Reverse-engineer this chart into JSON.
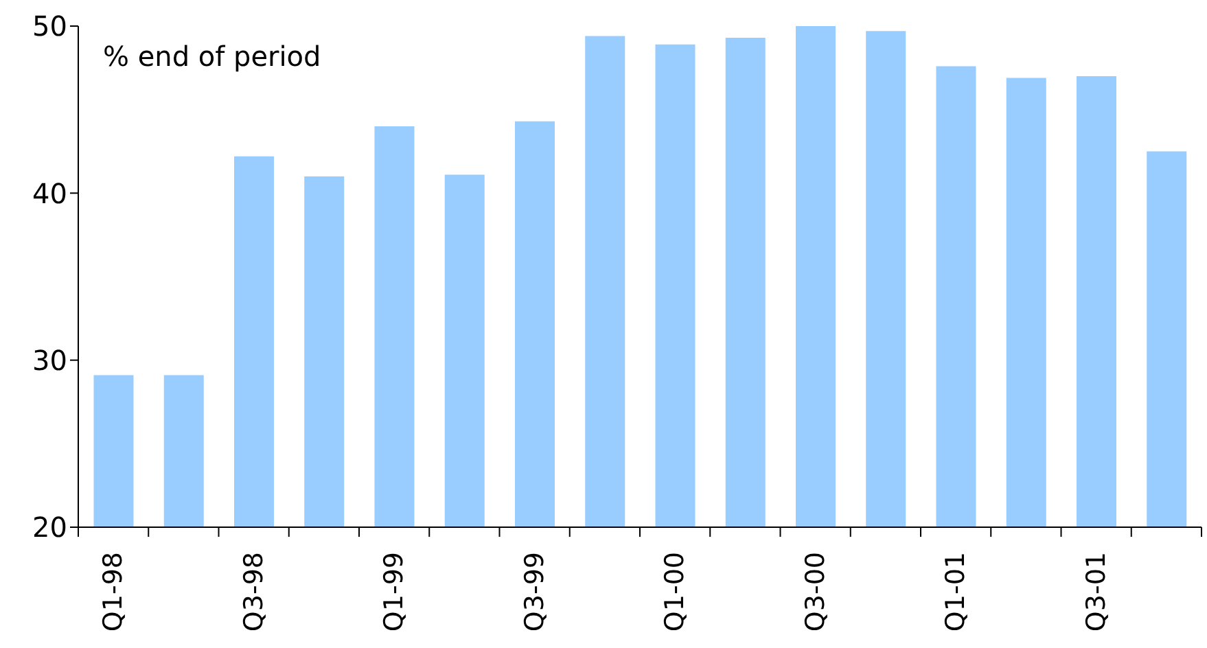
{
  "chart_data": {
    "type": "bar",
    "ylabel": "% end of period",
    "categories": [
      "Q1-98",
      null,
      "Q3-98",
      null,
      "Q1-99",
      null,
      "Q3-99",
      null,
      "Q1-00",
      null,
      "Q3-00",
      null,
      "Q1-01",
      null,
      "Q3-01",
      null
    ],
    "values": [
      29.1,
      29.1,
      42.2,
      41.0,
      44.0,
      41.1,
      44.3,
      49.4,
      48.9,
      49.3,
      50.0,
      49.7,
      47.6,
      46.9,
      47.0,
      42.5
    ],
    "color": "#99ccff",
    "ylim": [
      20,
      50
    ],
    "yticks": [
      20,
      30,
      40,
      50
    ],
    "grid": false,
    "legend": false
  }
}
